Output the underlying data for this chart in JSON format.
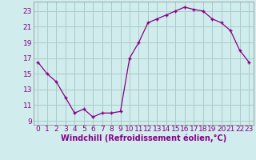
{
  "x": [
    0,
    1,
    2,
    3,
    4,
    5,
    6,
    7,
    8,
    9,
    10,
    11,
    12,
    13,
    14,
    15,
    16,
    17,
    18,
    19,
    20,
    21,
    22,
    23
  ],
  "y": [
    16.5,
    15.0,
    14.0,
    12.0,
    10.0,
    10.5,
    9.5,
    10.0,
    10.0,
    10.2,
    17.0,
    19.0,
    21.5,
    22.0,
    22.5,
    23.0,
    23.5,
    23.2,
    23.0,
    22.0,
    21.5,
    20.5,
    18.0,
    16.5
  ],
  "line_color": "#880088",
  "marker": "+",
  "bg_color": "#d0ecec",
  "grid_color": "#aacccc",
  "xlabel": "Windchill (Refroidissement éolien,°C)",
  "ylim": [
    8.5,
    24.2
  ],
  "yticks": [
    9,
    11,
    13,
    15,
    17,
    19,
    21,
    23
  ],
  "xticks": [
    0,
    1,
    2,
    3,
    4,
    5,
    6,
    7,
    8,
    9,
    10,
    11,
    12,
    13,
    14,
    15,
    16,
    17,
    18,
    19,
    20,
    21,
    22,
    23
  ],
  "xlabel_fontsize": 7,
  "tick_fontsize": 6.5,
  "label_color": "#880088"
}
